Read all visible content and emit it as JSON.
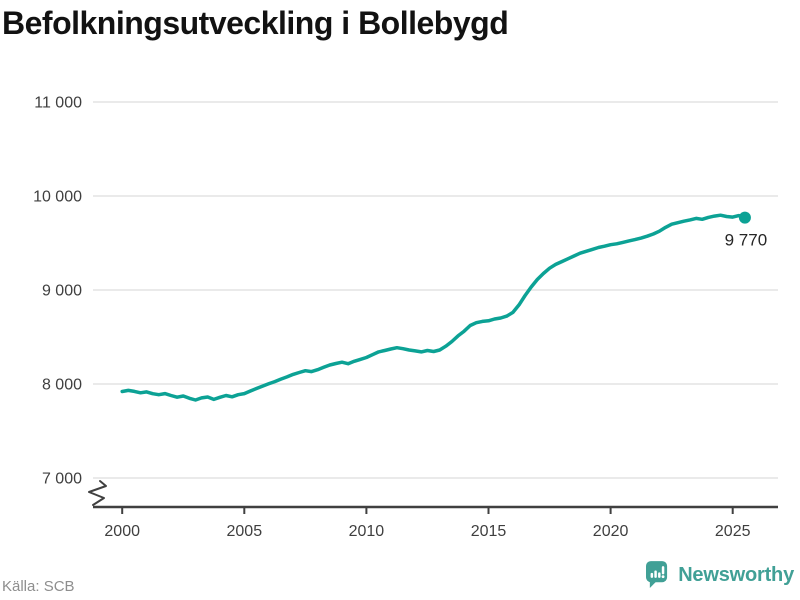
{
  "title": "Befolkningsutveckling i Bollebygd",
  "source": "Källa: SCB",
  "brand": {
    "name": "Newsworthy",
    "color": "#41a096"
  },
  "colors": {
    "background": "#ffffff",
    "line": "#0ca295",
    "grid": "#e3e3e3",
    "axis": "#404040",
    "tick_label": "#3f3f3f",
    "title": "#121212",
    "source": "#8e8e8e",
    "annotation": "#262626"
  },
  "chart_data": {
    "type": "line",
    "title": "Befolkningsutveckling i Bollebygd",
    "xlabel": "",
    "ylabel": "",
    "legend": "none",
    "grid": "horizontal",
    "axis_break": true,
    "xlim": [
      1999,
      2026.5
    ],
    "ylim": [
      7000,
      11000
    ],
    "x_ticks": [
      {
        "value": 2000,
        "label": "2000"
      },
      {
        "value": 2005,
        "label": "2005"
      },
      {
        "value": 2010,
        "label": "2010"
      },
      {
        "value": 2015,
        "label": "2015"
      },
      {
        "value": 2020,
        "label": "2020"
      },
      {
        "value": 2025,
        "label": "2025"
      }
    ],
    "y_ticks": [
      {
        "value": 7000,
        "label": "7 000"
      },
      {
        "value": 8000,
        "label": "8 000"
      },
      {
        "value": 9000,
        "label": "9 000"
      },
      {
        "value": 10000,
        "label": "10 000"
      },
      {
        "value": 11000,
        "label": "11 000"
      }
    ],
    "last_point_label": "9 770",
    "series": [
      {
        "name": "Befolkning",
        "points": [
          [
            2000,
            7920
          ],
          [
            2000.25,
            7932
          ],
          [
            2000.5,
            7921
          ],
          [
            2000.75,
            7906
          ],
          [
            2001,
            7916
          ],
          [
            2001.25,
            7897
          ],
          [
            2001.5,
            7886
          ],
          [
            2001.75,
            7898
          ],
          [
            2002,
            7878
          ],
          [
            2002.25,
            7860
          ],
          [
            2002.5,
            7872
          ],
          [
            2002.75,
            7848
          ],
          [
            2003,
            7830
          ],
          [
            2003.25,
            7852
          ],
          [
            2003.5,
            7862
          ],
          [
            2003.75,
            7836
          ],
          [
            2004,
            7858
          ],
          [
            2004.25,
            7878
          ],
          [
            2004.5,
            7864
          ],
          [
            2004.75,
            7886
          ],
          [
            2005,
            7898
          ],
          [
            2005.25,
            7926
          ],
          [
            2005.5,
            7952
          ],
          [
            2005.75,
            7978
          ],
          [
            2006,
            8002
          ],
          [
            2006.25,
            8026
          ],
          [
            2006.5,
            8052
          ],
          [
            2006.75,
            8076
          ],
          [
            2007,
            8102
          ],
          [
            2007.25,
            8122
          ],
          [
            2007.5,
            8142
          ],
          [
            2007.75,
            8132
          ],
          [
            2008,
            8152
          ],
          [
            2008.25,
            8178
          ],
          [
            2008.5,
            8202
          ],
          [
            2008.75,
            8218
          ],
          [
            2009,
            8232
          ],
          [
            2009.25,
            8216
          ],
          [
            2009.5,
            8242
          ],
          [
            2009.75,
            8262
          ],
          [
            2010,
            8282
          ],
          [
            2010.25,
            8312
          ],
          [
            2010.5,
            8342
          ],
          [
            2010.75,
            8356
          ],
          [
            2011,
            8372
          ],
          [
            2011.25,
            8386
          ],
          [
            2011.5,
            8376
          ],
          [
            2011.75,
            8362
          ],
          [
            2012,
            8352
          ],
          [
            2012.25,
            8342
          ],
          [
            2012.5,
            8356
          ],
          [
            2012.75,
            8346
          ],
          [
            2013,
            8362
          ],
          [
            2013.25,
            8402
          ],
          [
            2013.5,
            8452
          ],
          [
            2013.75,
            8512
          ],
          [
            2014,
            8562
          ],
          [
            2014.25,
            8622
          ],
          [
            2014.5,
            8652
          ],
          [
            2014.75,
            8666
          ],
          [
            2015,
            8672
          ],
          [
            2015.25,
            8692
          ],
          [
            2015.5,
            8702
          ],
          [
            2015.75,
            8722
          ],
          [
            2016,
            8762
          ],
          [
            2016.25,
            8842
          ],
          [
            2016.5,
            8942
          ],
          [
            2016.75,
            9032
          ],
          [
            2017,
            9112
          ],
          [
            2017.25,
            9176
          ],
          [
            2017.5,
            9232
          ],
          [
            2017.75,
            9272
          ],
          [
            2018,
            9302
          ],
          [
            2018.25,
            9332
          ],
          [
            2018.5,
            9362
          ],
          [
            2018.75,
            9392
          ],
          [
            2019,
            9412
          ],
          [
            2019.25,
            9432
          ],
          [
            2019.5,
            9452
          ],
          [
            2019.75,
            9466
          ],
          [
            2020,
            9482
          ],
          [
            2020.25,
            9492
          ],
          [
            2020.5,
            9506
          ],
          [
            2020.75,
            9522
          ],
          [
            2021,
            9536
          ],
          [
            2021.25,
            9552
          ],
          [
            2021.5,
            9572
          ],
          [
            2021.75,
            9596
          ],
          [
            2022,
            9626
          ],
          [
            2022.25,
            9666
          ],
          [
            2022.5,
            9700
          ],
          [
            2022.75,
            9716
          ],
          [
            2023,
            9732
          ],
          [
            2023.25,
            9746
          ],
          [
            2023.5,
            9762
          ],
          [
            2023.75,
            9752
          ],
          [
            2024,
            9772
          ],
          [
            2024.25,
            9786
          ],
          [
            2024.5,
            9796
          ],
          [
            2024.75,
            9782
          ],
          [
            2025,
            9776
          ],
          [
            2025.25,
            9792
          ],
          [
            2025.5,
            9770
          ]
        ]
      }
    ]
  }
}
